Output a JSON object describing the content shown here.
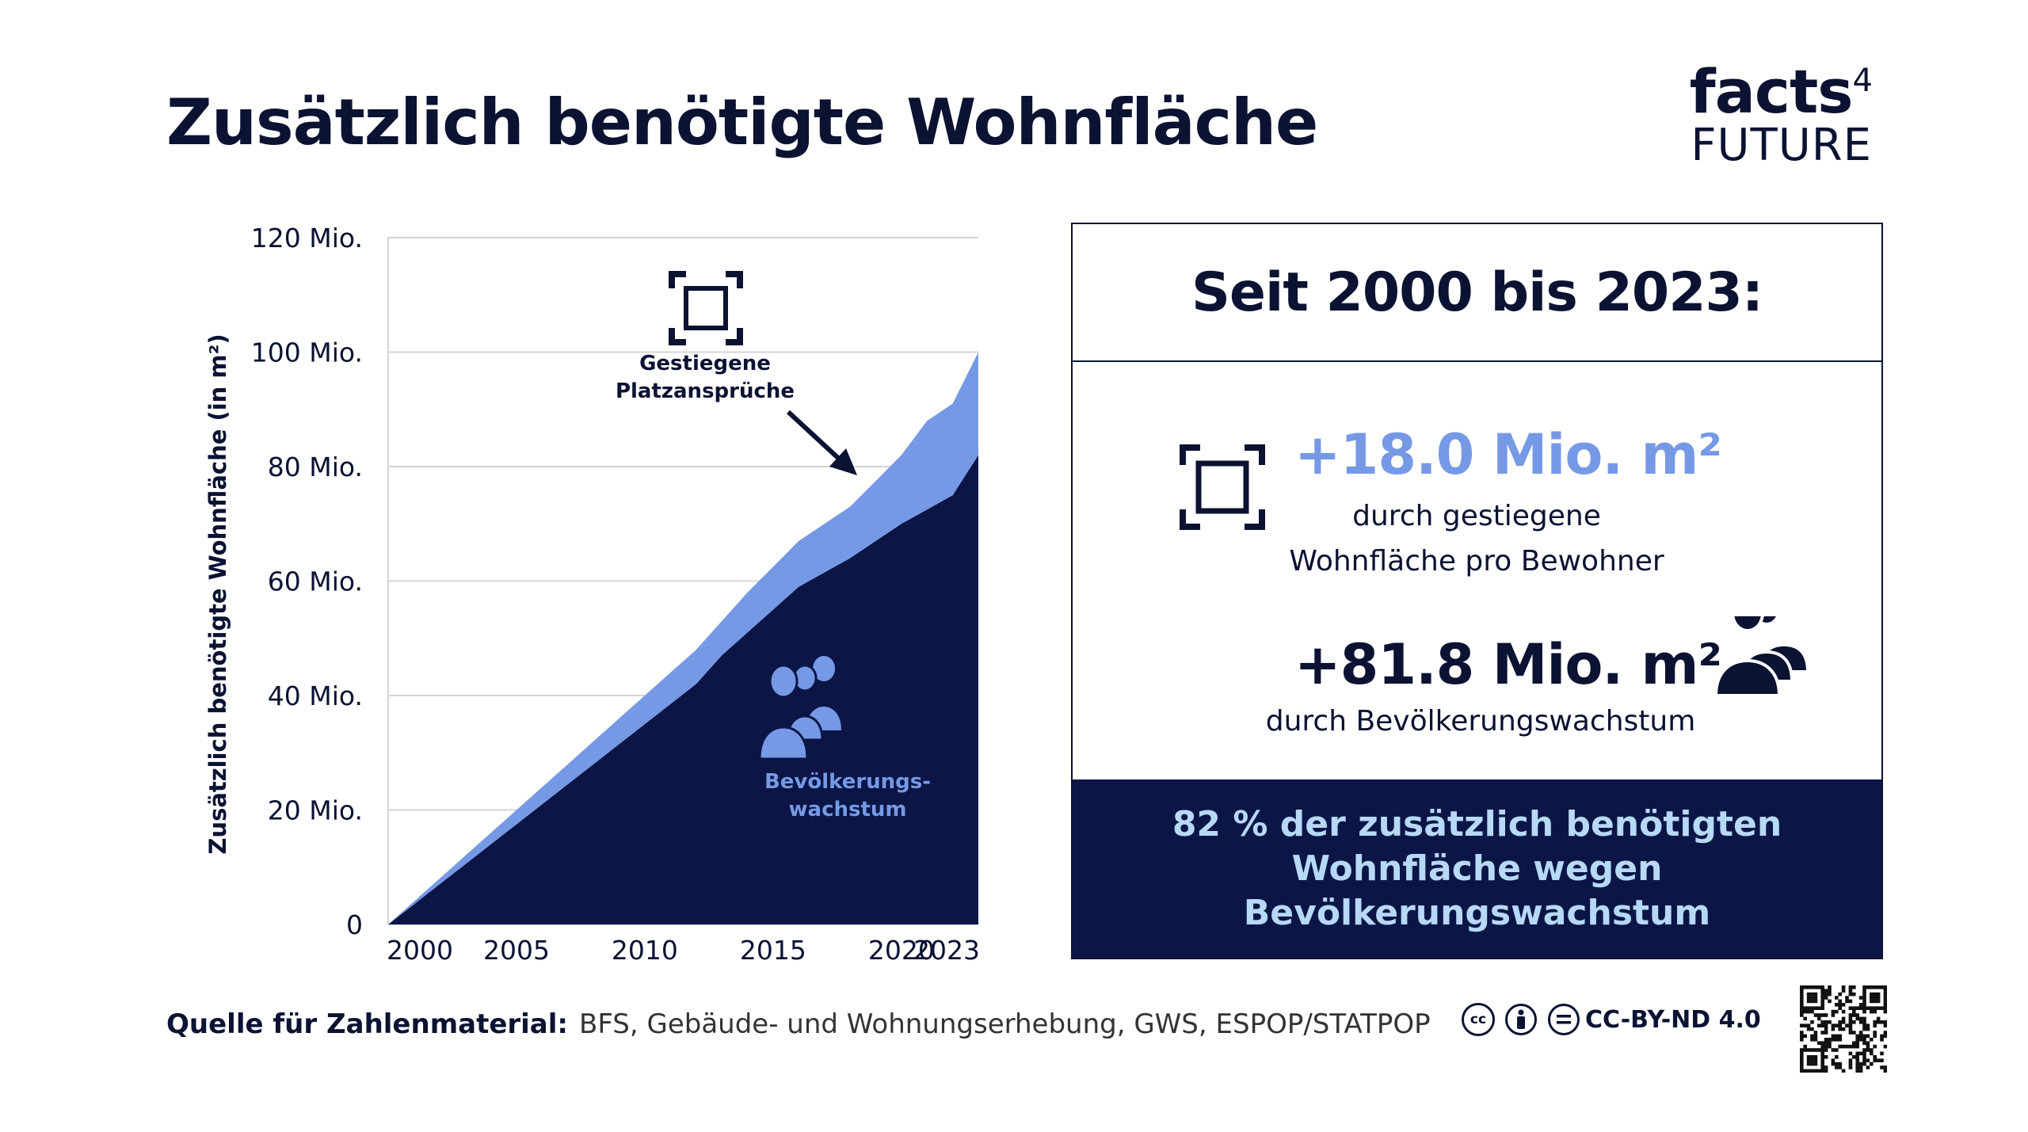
{
  "title": "Zusätzlich benötigte Wohnfläche",
  "logo": {
    "line1": "facts",
    "sup": "4",
    "line2": "FUTURE"
  },
  "chart_data": {
    "type": "area",
    "stacked": true,
    "title": "",
    "ylabel": "Zusätzlich benötigte Wohnfläche (in m²)",
    "xlabel": "",
    "x_range": [
      2000,
      2023
    ],
    "ylim": [
      0,
      120
    ],
    "y_ticks": [
      0,
      20,
      40,
      60,
      80,
      100,
      120
    ],
    "y_tick_labels": [
      "0",
      "20 Mio.",
      "40 Mio.",
      "60 Mio.",
      "80 Mio.",
      "100 Mio.",
      "120 Mio."
    ],
    "x_ticks": [
      2000,
      2005,
      2010,
      2015,
      2020,
      2023
    ],
    "x_tick_labels": [
      "2000",
      "2005",
      "2010",
      "2015",
      "2020",
      "2023"
    ],
    "x": [
      2000,
      2001,
      2002,
      2003,
      2004,
      2005,
      2006,
      2007,
      2008,
      2009,
      2010,
      2011,
      2012,
      2013,
      2014,
      2015,
      2016,
      2017,
      2018,
      2019,
      2020,
      2021,
      2022,
      2023
    ],
    "series": [
      {
        "name": "Bevölkerungswachstum",
        "color": "#0b1646",
        "values": [
          0,
          3.5,
          7,
          10.5,
          14,
          17.5,
          21,
          24.5,
          28,
          31.5,
          35,
          38.5,
          42,
          47,
          51,
          55,
          59,
          61.5,
          64,
          67,
          70,
          72.5,
          75,
          82
        ]
      },
      {
        "name": "Gestiegene Platzansprüche",
        "color": "#7699e6",
        "values": [
          0,
          0.5,
          1,
          1.5,
          2,
          2.5,
          3,
          3.5,
          4,
          4.5,
          5,
          5.5,
          6,
          6,
          7,
          7.5,
          8,
          8.5,
          9,
          10.5,
          12,
          15.5,
          16,
          18
        ]
      }
    ],
    "annotations": [
      {
        "text_line1": "Gestiegene",
        "text_line2": "Platzansprüche"
      },
      {
        "text_line1": "Bevölkerungs-",
        "text_line2": "wachstum"
      }
    ]
  },
  "panel": {
    "heading": "Seit 2000 bis 2023:",
    "stat1": {
      "value": "+18.0 Mio. m²",
      "line1": "durch gestiegene",
      "line2": "Wohnfläche pro Bewohner"
    },
    "stat2": {
      "value": "+81.8 Mio. m²",
      "line1": "durch Bevölkerungswachstum"
    },
    "conclusion": "82 % der zusätzlich benötigten Wohnfläche wegen Bevölkerungswachstum"
  },
  "footer": {
    "source_label": "Quelle für Zahlenmaterial:",
    "source_text": "BFS, Gebäude- und Wohnungserhebung, GWS, ESPOP/STATPOP"
  },
  "license": {
    "cc": "cc",
    "text": "CC-BY-ND 4.0"
  }
}
